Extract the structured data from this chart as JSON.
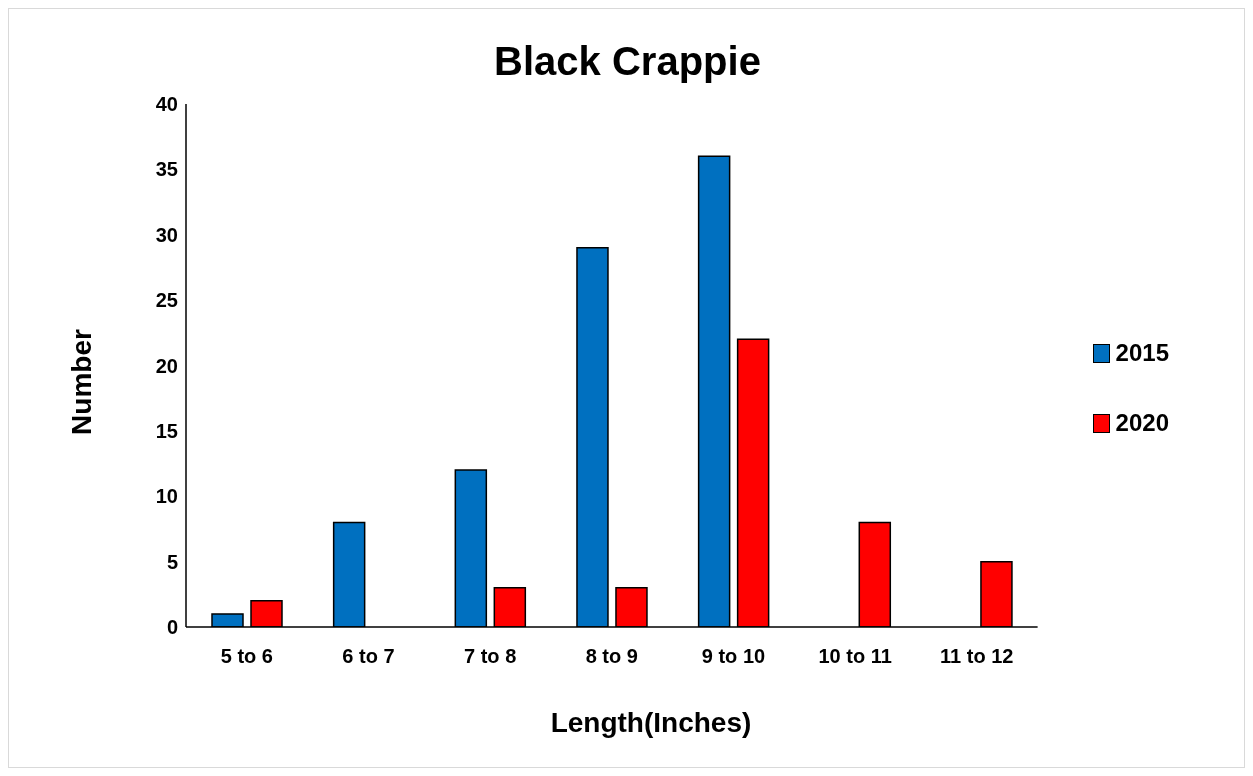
{
  "chart_data": {
    "type": "bar",
    "title": "Black Crappie",
    "xlabel": "Length(Inches)",
    "ylabel": "Number",
    "categories": [
      "5 to 6",
      "6 to 7",
      "7 to 8",
      "8 to 9",
      "9 to 10",
      "10 to 11",
      "11 to 12"
    ],
    "series": [
      {
        "name": "2015",
        "color": "#0070c0",
        "values": [
          1,
          8,
          12,
          29,
          36,
          0,
          0
        ]
      },
      {
        "name": "2020",
        "color": "#ff0000",
        "values": [
          2,
          0,
          3,
          3,
          22,
          8,
          5
        ]
      }
    ],
    "ylim": [
      0,
      40
    ],
    "yticks": [
      0,
      5,
      10,
      15,
      20,
      25,
      30,
      35,
      40
    ],
    "grid": false,
    "legend": "right"
  }
}
